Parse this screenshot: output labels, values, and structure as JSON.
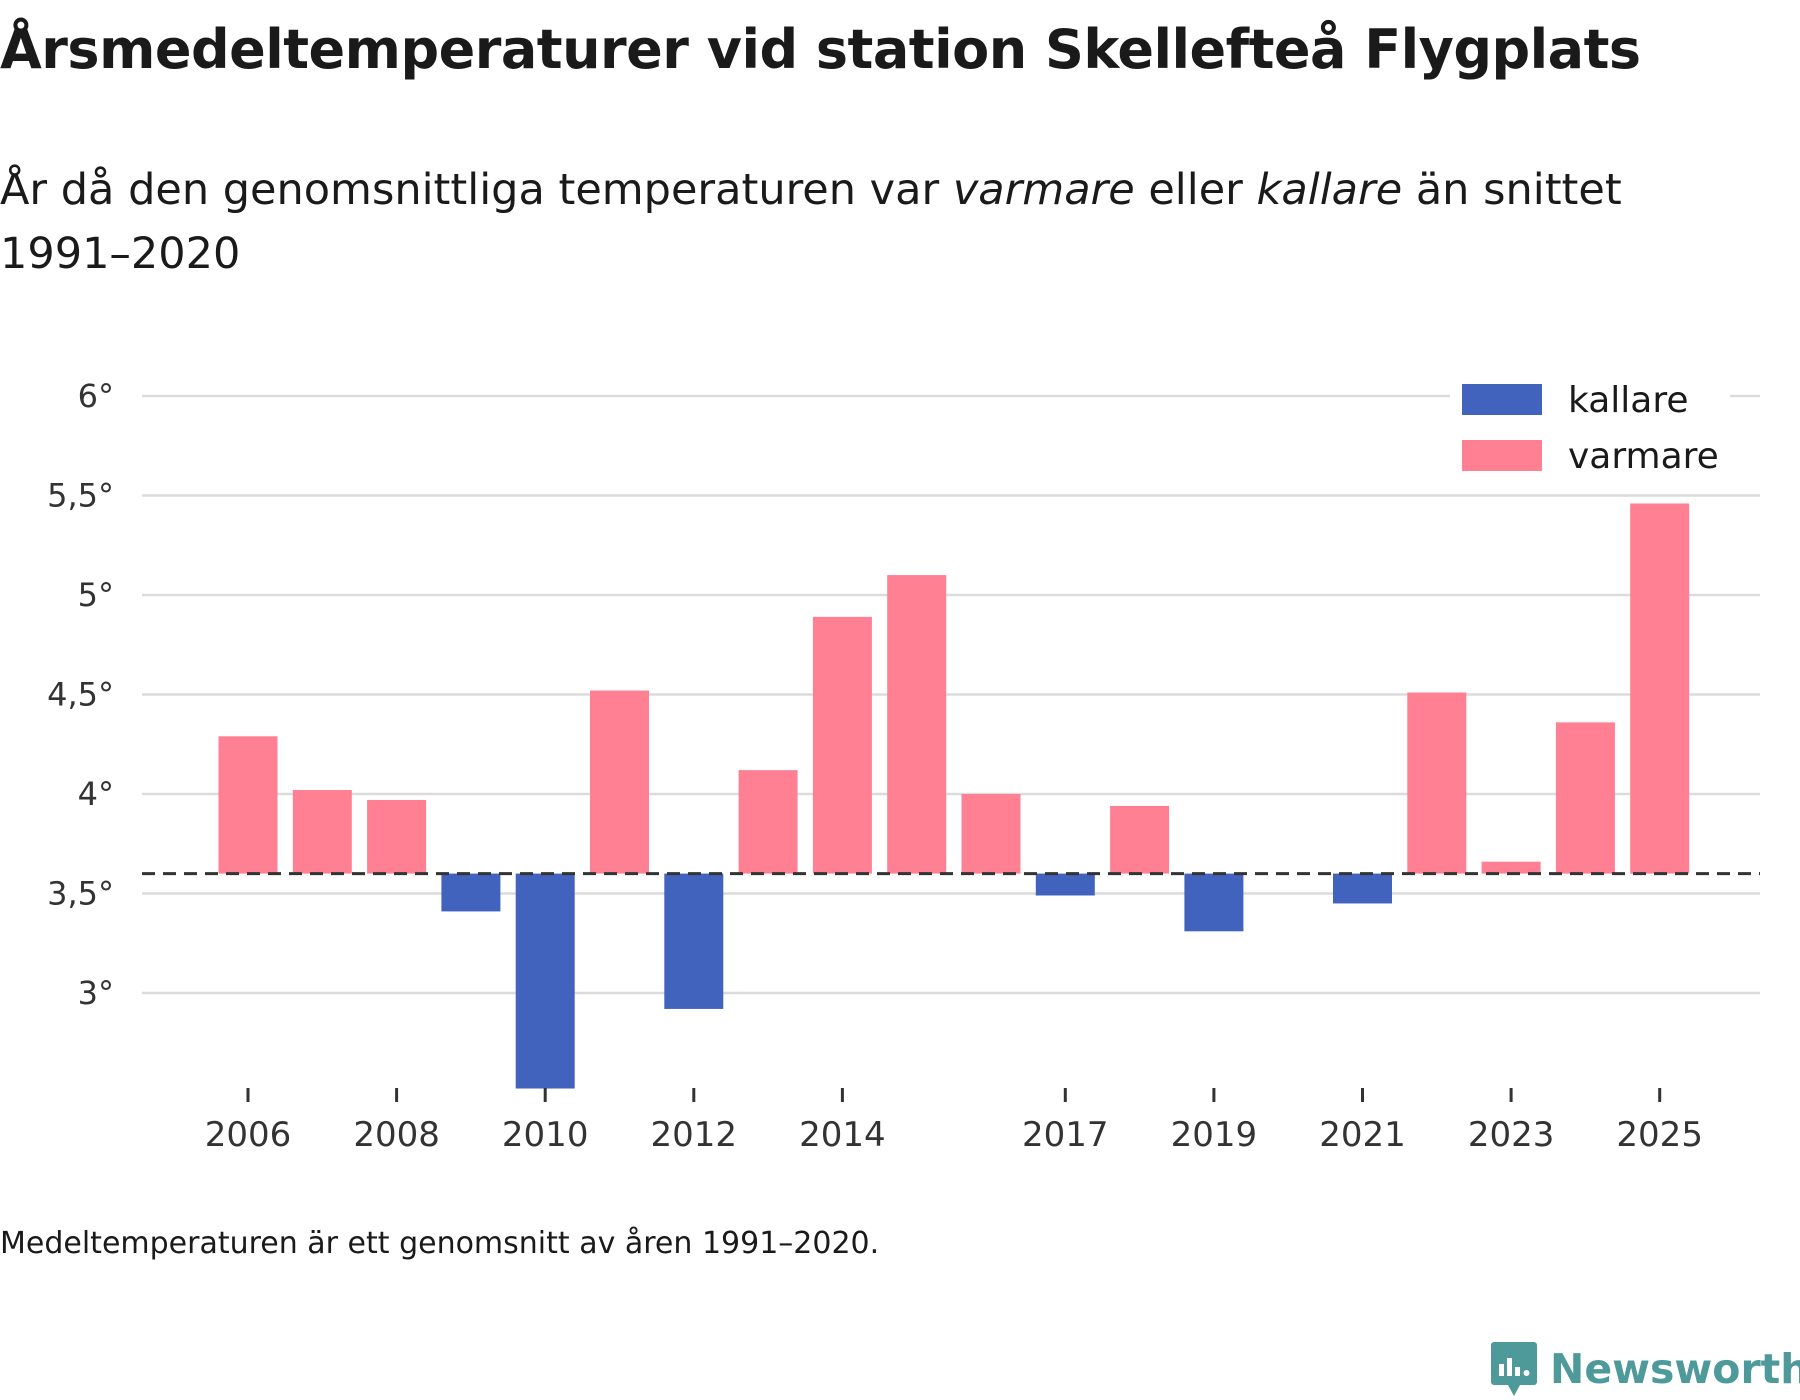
{
  "title": "Årsmedeltemperaturer vid station Skellefteå Flygplats",
  "subtitle": {
    "part1": "År då den genomsnittliga temperaturen var ",
    "em1": "varmare",
    "part2": " eller ",
    "em2": "kallare",
    "part3": " än snittet 1991–2020"
  },
  "footnote": "Medeltemperaturen är ett genomsnitt av åren 1991–2020.",
  "brand": {
    "name": "Newsworthy",
    "icon": "newsworthy-logo-icon"
  },
  "colors": {
    "kallare": "#4263bd",
    "varmare": "#ff8093",
    "grid": "#dcdcdc",
    "reference": "#333333",
    "text": "#333333",
    "brand": "#4e9a9a"
  },
  "chart_data": {
    "type": "bar",
    "reference": 3.6,
    "reference_style": "dashed",
    "ylim": [
      2.5,
      6.1
    ],
    "yticks": [
      3,
      3.5,
      4,
      4.5,
      5,
      5.5,
      6
    ],
    "ytick_labels": [
      "3°",
      "3,5°",
      "4°",
      "4,5°",
      "5°",
      "5,5°",
      "6°"
    ],
    "xtick_labels": [
      "2006",
      "2008",
      "2010",
      "2012",
      "2014",
      "2017",
      "2019",
      "2021",
      "2023",
      "2025"
    ],
    "legend": {
      "position": "top-right",
      "items": [
        {
          "key": "kallare",
          "label": "kallare"
        },
        {
          "key": "varmare",
          "label": "varmare"
        }
      ]
    },
    "grid": true,
    "bars": [
      {
        "year": 2006,
        "value": 4.29
      },
      {
        "year": 2007,
        "value": 4.02
      },
      {
        "year": 2008,
        "value": 3.97
      },
      {
        "year": 2009,
        "value": 3.41
      },
      {
        "year": 2010,
        "value": 2.52
      },
      {
        "year": 2011,
        "value": 4.52
      },
      {
        "year": 2012,
        "value": 2.92
      },
      {
        "year": 2013,
        "value": 4.12
      },
      {
        "year": 2014,
        "value": 4.89
      },
      {
        "year": 2015,
        "value": 5.1
      },
      {
        "year": 2016,
        "value": 4.0
      },
      {
        "year": 2017,
        "value": 3.49
      },
      {
        "year": 2018,
        "value": 3.94
      },
      {
        "year": 2019,
        "value": 3.31
      },
      {
        "year": 2021,
        "value": 3.45
      },
      {
        "year": 2022,
        "value": 4.51
      },
      {
        "year": 2023,
        "value": 3.66
      },
      {
        "year": 2024,
        "value": 4.36
      },
      {
        "year": 2025,
        "value": 5.46
      }
    ]
  }
}
